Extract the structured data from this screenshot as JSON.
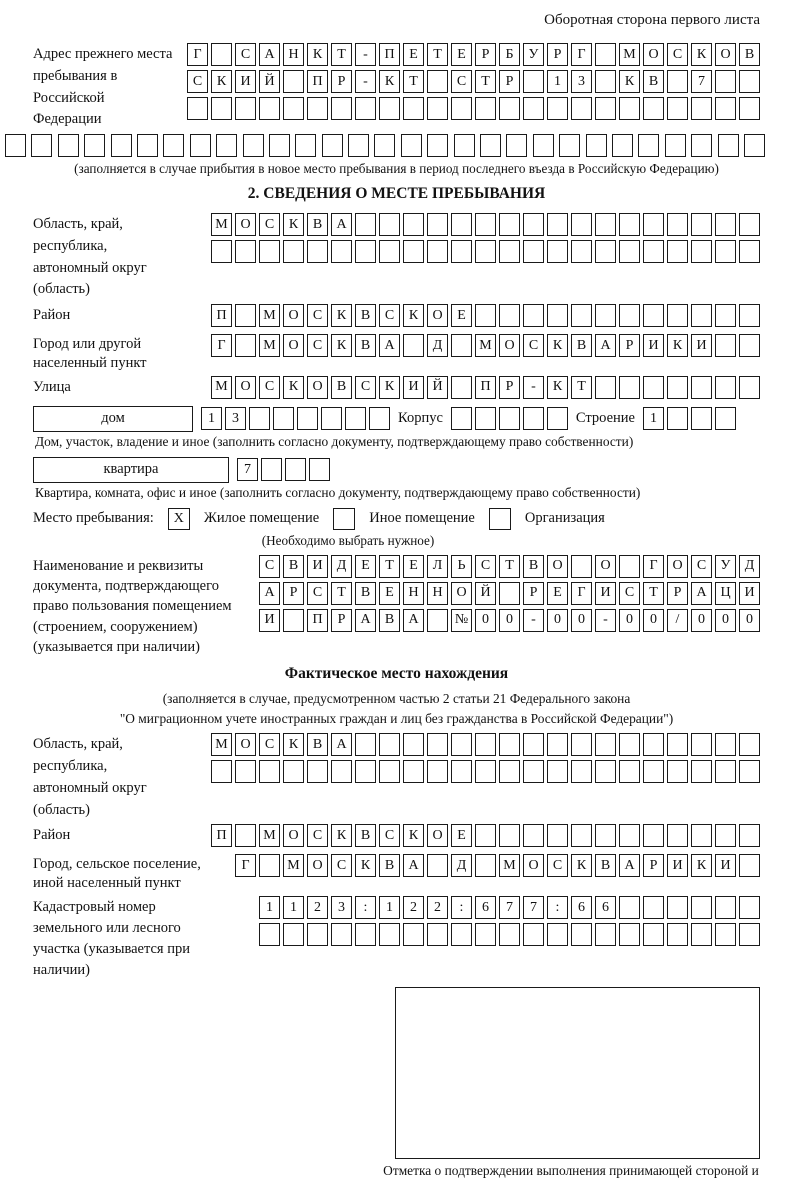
{
  "header": {
    "note": "Оборотная сторона первого листа"
  },
  "prev_address": {
    "label": "Адрес прежнего места пребывания в Российской Федерации",
    "row1": [
      "Г",
      "",
      "С",
      "А",
      "Н",
      "К",
      "Т",
      "-",
      "П",
      "Е",
      "Т",
      "Е",
      "Р",
      "Б",
      "У",
      "Р",
      "Г",
      "",
      "М",
      "О",
      "С",
      "К",
      "О",
      "В"
    ],
    "row2": [
      "С",
      "К",
      "И",
      "Й",
      "",
      "П",
      "Р",
      "-",
      "К",
      "Т",
      "",
      "С",
      "Т",
      "Р",
      "",
      "1",
      "3",
      "",
      "К",
      "В",
      "",
      "7",
      "",
      ""
    ],
    "row3": [
      "",
      "",
      "",
      "",
      "",
      "",
      "",
      "",
      "",
      "",
      "",
      "",
      "",
      "",
      "",
      "",
      "",
      "",
      "",
      "",
      "",
      "",
      "",
      ""
    ],
    "row4": [
      "",
      "",
      "",
      "",
      "",
      "",
      "",
      "",
      "",
      "",
      "",
      "",
      "",
      "",
      "",
      "",
      "",
      "",
      "",
      "",
      "",
      "",
      "",
      "",
      "",
      "",
      "",
      "",
      ""
    ],
    "note": "(заполняется в случае прибытия в новое место пребывания в период последнего въезда в Российскую Федерацию)"
  },
  "section2": {
    "title": "2. СВЕДЕНИЯ О МЕСТЕ ПРЕБЫВАНИЯ",
    "region": {
      "label": "Область, край, республика, автономный округ (область)",
      "row1": [
        "М",
        "О",
        "С",
        "К",
        "В",
        "А",
        "",
        "",
        "",
        "",
        "",
        "",
        "",
        "",
        "",
        "",
        "",
        "",
        "",
        "",
        "",
        "",
        ""
      ],
      "row2": [
        "",
        "",
        "",
        "",
        "",
        "",
        "",
        "",
        "",
        "",
        "",
        "",
        "",
        "",
        "",
        "",
        "",
        "",
        "",
        "",
        "",
        "",
        ""
      ]
    },
    "district": {
      "label": "Район",
      "row": [
        "П",
        "",
        "М",
        "О",
        "С",
        "К",
        "В",
        "С",
        "К",
        "О",
        "Е",
        "",
        "",
        "",
        "",
        "",
        "",
        "",
        "",
        "",
        "",
        "",
        ""
      ]
    },
    "city": {
      "label": "Город или другой населенный пункт",
      "row": [
        "Г",
        "",
        "М",
        "О",
        "С",
        "К",
        "В",
        "А",
        "",
        "Д",
        "",
        "М",
        "О",
        "С",
        "К",
        "В",
        "А",
        "Р",
        "И",
        "К",
        "И",
        "",
        ""
      ]
    },
    "street": {
      "label": "Улица",
      "row": [
        "М",
        "О",
        "С",
        "К",
        "О",
        "В",
        "С",
        "К",
        "И",
        "Й",
        "",
        "П",
        "Р",
        "-",
        "К",
        "Т",
        "",
        "",
        "",
        "",
        "",
        "",
        ""
      ]
    },
    "house": {
      "box_label": "дом",
      "cells": [
        "1",
        "3",
        "",
        "",
        "",
        "",
        "",
        ""
      ],
      "korpus_label": "Корпус",
      "korpus_cells": [
        "",
        "",
        "",
        "",
        ""
      ],
      "stroenie_label": "Строение",
      "stroenie_cells": [
        "1",
        "",
        "",
        ""
      ],
      "caption": "Дом, участок, владение и иное (заполнить согласно документу, подтверждающему право собственности)"
    },
    "apartment": {
      "box_label": "квартира",
      "cells": [
        "7",
        "",
        "",
        ""
      ],
      "caption": "Квартира, комната, офис и иное (заполнить согласно документу, подтверждающему право собственности)"
    },
    "stay_type": {
      "label": "Место пребывания:",
      "options": [
        {
          "checked": "X",
          "label": "Жилое помещение"
        },
        {
          "checked": "",
          "label": "Иное помещение"
        },
        {
          "checked": "",
          "label": "Организация"
        }
      ],
      "note": "(Необходимо выбрать нужное)"
    },
    "document": {
      "label": "Наименование и реквизиты документа, подтверждающего право пользования помещением (строением, сооружением) (указывается при наличии)",
      "row1": [
        "С",
        "В",
        "И",
        "Д",
        "Е",
        "Т",
        "Е",
        "Л",
        "Ь",
        "С",
        "Т",
        "В",
        "О",
        "",
        "О",
        "",
        "Г",
        "О",
        "С",
        "У",
        "Д"
      ],
      "row2": [
        "А",
        "Р",
        "С",
        "Т",
        "В",
        "Е",
        "Н",
        "Н",
        "О",
        "Й",
        "",
        "Р",
        "Е",
        "Г",
        "И",
        "С",
        "Т",
        "Р",
        "А",
        "Ц",
        "И"
      ],
      "row3": [
        "И",
        "",
        "П",
        "Р",
        "А",
        "В",
        "А",
        "",
        "№",
        "0",
        "0",
        "-",
        "0",
        "0",
        "-",
        "0",
        "0",
        "/",
        "0",
        "0",
        "0"
      ]
    }
  },
  "actual_location": {
    "title": "Фактическое место нахождения",
    "note1": "(заполняется в случае, предусмотренном частью 2 статьи 21 Федерального закона",
    "note2": "\"О миграционном учете иностранных граждан и лиц без гражданства в Российской Федерации\")",
    "region": {
      "label": "Область, край, республика, автономный округ (область)",
      "row1": [
        "М",
        "О",
        "С",
        "К",
        "В",
        "А",
        "",
        "",
        "",
        "",
        "",
        "",
        "",
        "",
        "",
        "",
        "",
        "",
        "",
        "",
        "",
        "",
        ""
      ],
      "row2": [
        "",
        "",
        "",
        "",
        "",
        "",
        "",
        "",
        "",
        "",
        "",
        "",
        "",
        "",
        "",
        "",
        "",
        "",
        "",
        "",
        "",
        "",
        ""
      ]
    },
    "district": {
      "label": "Район",
      "row": [
        "П",
        "",
        "М",
        "О",
        "С",
        "К",
        "В",
        "С",
        "К",
        "О",
        "Е",
        "",
        "",
        "",
        "",
        "",
        "",
        "",
        "",
        "",
        "",
        "",
        ""
      ]
    },
    "city": {
      "label": "Город, сельское поселение, иной населенный пункт",
      "row": [
        "Г",
        "",
        "М",
        "О",
        "С",
        "К",
        "В",
        "А",
        "",
        "Д",
        "",
        "М",
        "О",
        "С",
        "К",
        "В",
        "А",
        "Р",
        "И",
        "К",
        "И",
        ""
      ]
    },
    "cadastral": {
      "label": "Кадастровый номер земельного или лесного участка (указывается при наличии)",
      "row1": [
        "1",
        "1",
        "2",
        "3",
        ":",
        "1",
        "2",
        "2",
        ":",
        "6",
        "7",
        "7",
        ":",
        "6",
        "6",
        "",
        "",
        "",
        "",
        "",
        ""
      ],
      "row2": [
        "",
        "",
        "",
        "",
        "",
        "",
        "",
        "",
        "",
        "",
        "",
        "",
        "",
        "",
        "",
        "",
        "",
        "",
        "",
        "",
        ""
      ]
    },
    "stamp_caption": "Отметка о подтверждении выполнения принимающей стороной и иностранным гражданином или лицом без гражданства действий, необходимых для его постановки на учет по месту пребывания"
  }
}
